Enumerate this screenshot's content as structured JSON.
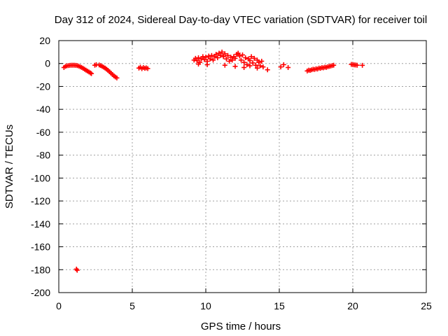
{
  "chart_data": {
    "type": "scatter",
    "title": "Day 312 of 2024, Sidereal Day-to-day VTEC variation (SDTVAR) for receiver toil",
    "xlabel": "GPS time / hours",
    "ylabel": "SDTVAR / TECUs",
    "xlim": [
      0,
      25
    ],
    "ylim": [
      -200,
      20
    ],
    "xticks": [
      0,
      5,
      10,
      15,
      20,
      25
    ],
    "yticks": [
      -200,
      -180,
      -160,
      -140,
      -120,
      -100,
      -80,
      -60,
      -40,
      -20,
      0,
      20
    ],
    "grid": true,
    "marker": "plus",
    "color": "#ff0000",
    "series": [
      {
        "name": "SDTVAR",
        "points": [
          [
            0.35,
            -3.5
          ],
          [
            0.45,
            -2.5
          ],
          [
            0.55,
            -2.0
          ],
          [
            0.65,
            -1.8
          ],
          [
            0.75,
            -1.6
          ],
          [
            0.85,
            -1.5
          ],
          [
            0.95,
            -1.5
          ],
          [
            1.05,
            -1.5
          ],
          [
            1.15,
            -1.6
          ],
          [
            1.25,
            -1.8
          ],
          [
            1.35,
            -2.2
          ],
          [
            1.45,
            -2.8
          ],
          [
            1.55,
            -3.4
          ],
          [
            1.65,
            -4.2
          ],
          [
            1.75,
            -5.0
          ],
          [
            1.85,
            -5.8
          ],
          [
            1.95,
            -6.6
          ],
          [
            2.05,
            -7.4
          ],
          [
            2.15,
            -8.2
          ],
          [
            2.22,
            -8.8
          ],
          [
            1.2,
            -179.5
          ],
          [
            1.25,
            -180.5
          ],
          [
            2.45,
            -1.5
          ],
          [
            2.55,
            -1.0
          ],
          [
            2.75,
            -1.3
          ],
          [
            2.85,
            -1.8
          ],
          [
            2.95,
            -2.5
          ],
          [
            3.05,
            -3.2
          ],
          [
            3.15,
            -4.0
          ],
          [
            3.25,
            -5.0
          ],
          [
            3.35,
            -6.0
          ],
          [
            3.45,
            -7.2
          ],
          [
            3.55,
            -8.4
          ],
          [
            3.65,
            -9.6
          ],
          [
            3.75,
            -10.8
          ],
          [
            3.85,
            -11.8
          ],
          [
            3.95,
            -12.6
          ],
          [
            5.45,
            -4.0
          ],
          [
            5.55,
            -3.2
          ],
          [
            5.65,
            -4.5
          ],
          [
            5.75,
            -3.5
          ],
          [
            5.85,
            -4.2
          ],
          [
            5.95,
            -3.8
          ],
          [
            6.05,
            -4.4
          ],
          [
            9.2,
            3.0
          ],
          [
            9.3,
            4.5
          ],
          [
            9.4,
            2.5
          ],
          [
            9.5,
            5.0
          ],
          [
            9.6,
            1.0
          ],
          [
            9.7,
            4.0
          ],
          [
            9.8,
            6.0
          ],
          [
            9.9,
            3.5
          ],
          [
            10.0,
            5.5
          ],
          [
            10.1,
            2.0
          ],
          [
            10.2,
            6.5
          ],
          [
            10.3,
            4.0
          ],
          [
            10.4,
            7.0
          ],
          [
            10.5,
            3.0
          ],
          [
            10.6,
            6.0
          ],
          [
            10.7,
            8.0
          ],
          [
            10.8,
            5.0
          ],
          [
            10.9,
            9.0
          ],
          [
            11.0,
            7.0
          ],
          [
            11.1,
            10.0
          ],
          [
            11.2,
            6.0
          ],
          [
            11.3,
            8.5
          ],
          [
            11.4,
            4.0
          ],
          [
            11.5,
            7.0
          ],
          [
            11.6,
            2.0
          ],
          [
            11.7,
            5.5
          ],
          [
            11.8,
            3.0
          ],
          [
            11.9,
            6.0
          ],
          [
            12.0,
            4.5
          ],
          [
            12.1,
            8.0
          ],
          [
            12.2,
            9.0
          ],
          [
            12.3,
            6.5
          ],
          [
            12.4,
            3.0
          ],
          [
            12.5,
            7.5
          ],
          [
            12.6,
            1.0
          ],
          [
            12.7,
            5.0
          ],
          [
            12.8,
            -1.0
          ],
          [
            12.9,
            4.0
          ],
          [
            13.0,
            2.5
          ],
          [
            13.1,
            6.0
          ],
          [
            13.2,
            0.5
          ],
          [
            13.3,
            4.5
          ],
          [
            13.4,
            -1.5
          ],
          [
            13.5,
            3.0
          ],
          [
            13.6,
            1.0
          ],
          [
            13.7,
            -2.0
          ],
          [
            13.8,
            2.0
          ],
          [
            13.9,
            -3.0
          ],
          [
            9.5,
            -0.5
          ],
          [
            10.1,
            -1.0
          ],
          [
            11.3,
            -1.5
          ],
          [
            12.0,
            -2.5
          ],
          [
            12.6,
            -3.5
          ],
          [
            13.0,
            -2.0
          ],
          [
            13.5,
            -4.0
          ],
          [
            14.2,
            -5.5
          ],
          [
            15.1,
            -3.0
          ],
          [
            15.3,
            -1.0
          ],
          [
            15.6,
            -3.5
          ],
          [
            16.9,
            -6.5
          ],
          [
            17.0,
            -5.8
          ],
          [
            17.1,
            -6.0
          ],
          [
            17.2,
            -5.5
          ],
          [
            17.3,
            -5.0
          ],
          [
            17.4,
            -5.2
          ],
          [
            17.5,
            -4.6
          ],
          [
            17.6,
            -4.8
          ],
          [
            17.7,
            -4.0
          ],
          [
            17.8,
            -4.2
          ],
          [
            17.9,
            -3.6
          ],
          [
            18.0,
            -3.8
          ],
          [
            18.1,
            -3.2
          ],
          [
            18.2,
            -3.4
          ],
          [
            18.3,
            -2.8
          ],
          [
            18.4,
            -2.5
          ],
          [
            18.5,
            -2.2
          ],
          [
            18.6,
            -1.8
          ],
          [
            18.7,
            -1.5
          ],
          [
            19.9,
            -0.8
          ],
          [
            20.0,
            -1.0
          ],
          [
            20.1,
            -1.2
          ],
          [
            20.2,
            -1.3
          ],
          [
            20.3,
            -1.5
          ],
          [
            20.65,
            -1.6
          ]
        ]
      }
    ]
  }
}
